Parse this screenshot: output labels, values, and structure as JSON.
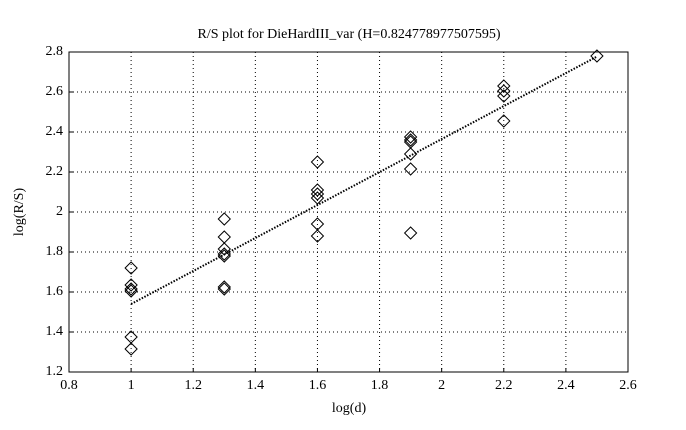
{
  "chart_data": {
    "type": "scatter",
    "title": "R/S plot for DieHardIII_var (H=0.824778977507595)",
    "x_label": "log(d)",
    "y_label": "log(R/S)",
    "x": [
      1,
      1,
      1,
      1,
      1,
      1,
      1.3,
      1.3,
      1.3,
      1.3,
      1.3,
      1.3,
      1.3,
      1.6,
      1.6,
      1.6,
      1.6,
      1.6,
      1.6,
      1.9,
      1.9,
      1.9,
      1.9,
      1.9,
      1.9,
      2.2,
      2.2,
      2.2,
      2.2,
      2.5
    ],
    "values": [
      1.72,
      1.635,
      1.615,
      1.605,
      1.375,
      1.315,
      1.965,
      1.875,
      1.815,
      1.79,
      1.78,
      1.625,
      1.615,
      2.25,
      2.11,
      2.09,
      2.07,
      1.94,
      1.88,
      2.375,
      2.36,
      2.35,
      2.29,
      2.215,
      1.895,
      2.63,
      2.605,
      2.58,
      2.455,
      2.78
    ],
    "color": "#000000",
    "fit": {
      "x": [
        1,
        2.5
      ],
      "values": [
        1.54,
        2.777
      ]
    },
    "xlim": [
      0.8,
      2.6
    ],
    "xticks": [
      0.8,
      1,
      1.2,
      1.4,
      1.6,
      1.8,
      2,
      2.2,
      2.4,
      2.6
    ],
    "ylim": [
      1.2,
      2.8
    ],
    "yticks": [
      1.2,
      1.4,
      1.6,
      1.8,
      2,
      2.2,
      2.4,
      2.6,
      2.8
    ],
    "grid": true
  }
}
